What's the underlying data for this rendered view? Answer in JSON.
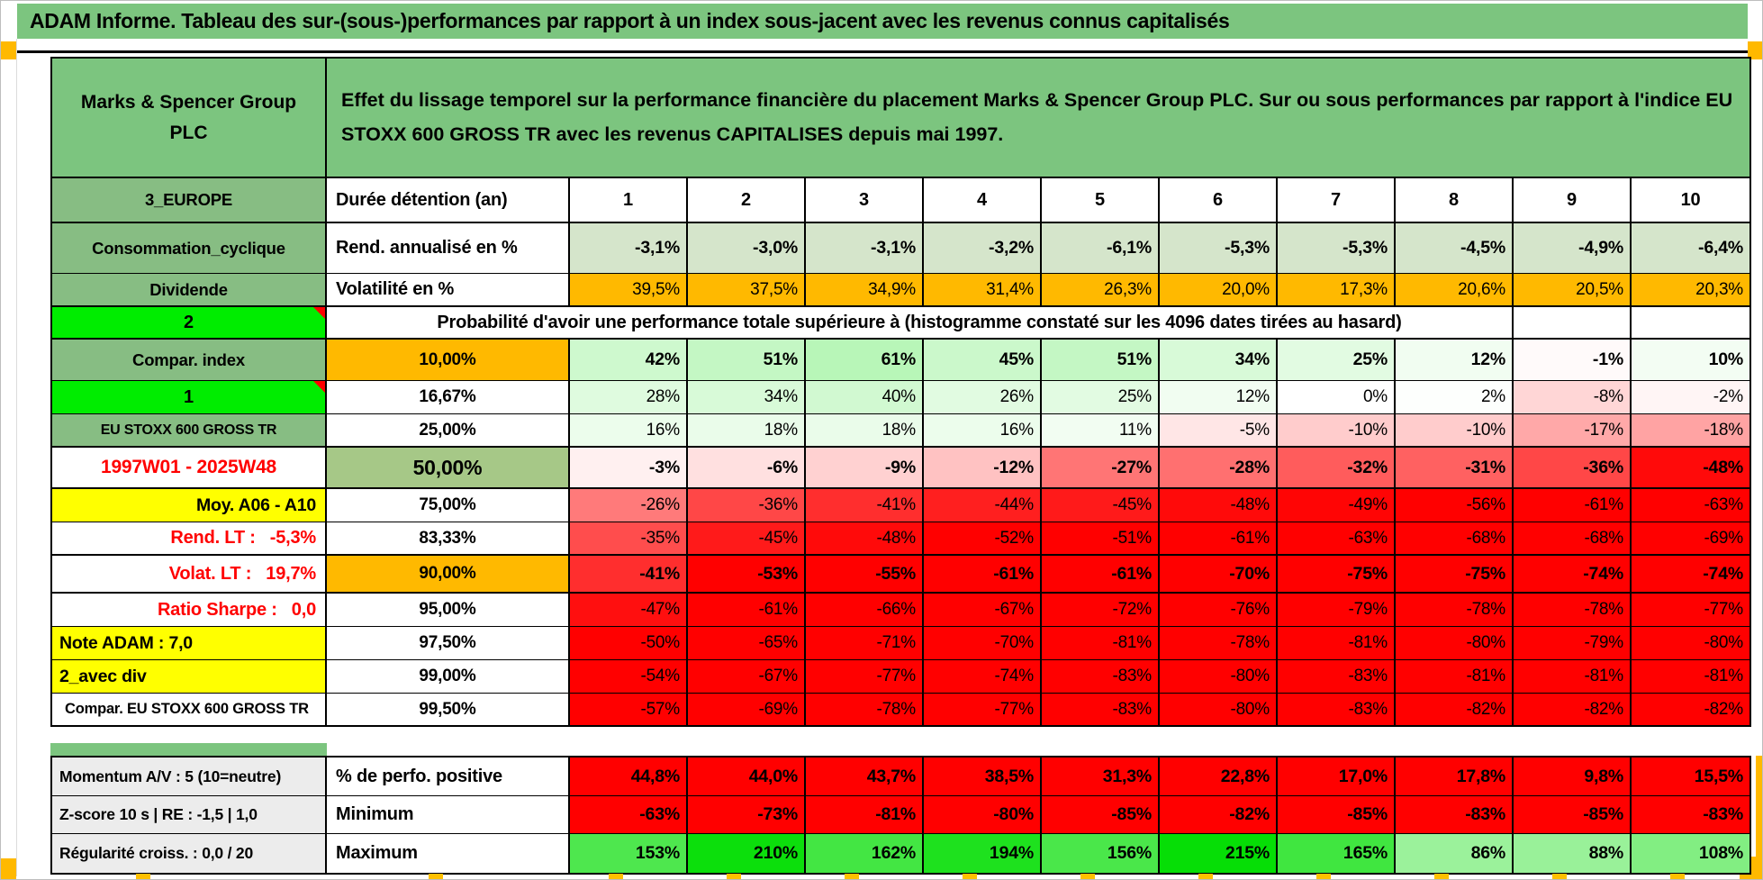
{
  "page": {
    "title": "ADAM Informe. Tableau des sur-(sous-)performances par rapport à un index sous-jacent avec les revenus connus capitalisés"
  },
  "header": {
    "company": "Marks & Spencer Group PLC",
    "description": "Effet du lissage temporel sur la performance financière du placement Marks & Spencer Group PLC. Sur ou sous performances par rapport à l'indice EU STOXX 600 GROSS TR avec les revenus CAPITALISES depuis mai 1997."
  },
  "colors": {
    "header_green": "#7CC57F",
    "label_green": "#87BD83",
    "bright_green": "#00ED00",
    "orange": "#FFB900",
    "yellow": "#FFFF00",
    "muted_green": "#A6C887",
    "pale_green": "#D5E5CB",
    "red_text": "#FF0000",
    "gray_label": "#ECECEC",
    "heat_red": "#FF0000",
    "heat_green": "#00DD00"
  },
  "columns": [
    "1",
    "2",
    "3",
    "4",
    "5",
    "6",
    "7",
    "8",
    "9",
    "10"
  ],
  "main_rows": [
    {
      "a": "3_EUROPE",
      "a_style": "a-green",
      "b": "Durée détention (an)",
      "b_style": "b-left",
      "v_style": "cols",
      "values": [
        "1",
        "2",
        "3",
        "4",
        "5",
        "6",
        "7",
        "8",
        "9",
        "10"
      ]
    },
    {
      "a": "Consommation_cyclique",
      "a_style": "a-green",
      "b": "Rend. annualisé en %",
      "b_style": "b-left",
      "v_style": "pale",
      "values": [
        "-3,1%",
        "-3,0%",
        "-3,1%",
        "-3,2%",
        "-6,1%",
        "-5,3%",
        "-5,3%",
        "-4,5%",
        "-4,9%",
        "-6,4%"
      ]
    },
    {
      "a": "Dividende",
      "a_style": "a-green",
      "b": "Volatilité en %",
      "b_style": "b-left",
      "v_style": "vol",
      "values": [
        "39,5%",
        "37,5%",
        "34,9%",
        "31,4%",
        "26,3%",
        "20,0%",
        "17,3%",
        "20,6%",
        "20,5%",
        "20,3%"
      ]
    },
    {
      "type": "banner",
      "a": "2",
      "a_style": "a-lime",
      "tri": true,
      "banner": "Probabilité d'avoir une performance totale supérieure à (histogramme constaté sur les 4096 dates tirées au hasard)"
    },
    {
      "a": "Compar. index",
      "a_style": "a-green",
      "b": "10,00%",
      "b_style": "b-orange",
      "v_style": "heatb",
      "values": [
        "42%",
        "51%",
        "61%",
        "45%",
        "51%",
        "34%",
        "25%",
        "12%",
        "-1%",
        "10%"
      ]
    },
    {
      "a": "1",
      "a_style": "a-lime",
      "tri": true,
      "b": "16,67%",
      "b_style": "",
      "v_style": "heat",
      "values": [
        "28%",
        "34%",
        "40%",
        "26%",
        "25%",
        "12%",
        "0%",
        "2%",
        "-8%",
        "-2%"
      ]
    },
    {
      "a": "EU STOXX 600 GROSS TR",
      "a_style": "a-green a-sm",
      "b": "25,00%",
      "b_style": "",
      "v_style": "heat",
      "values": [
        "16%",
        "18%",
        "18%",
        "16%",
        "11%",
        "-5%",
        "-10%",
        "-10%",
        "-17%",
        "-18%"
      ]
    },
    {
      "a": "1997W01 - 2025W48",
      "a_style": "a-date",
      "b": "50,00%",
      "b_style": "b-green b-big",
      "v_style": "heatb",
      "values": [
        "-3%",
        "-6%",
        "-9%",
        "-12%",
        "-27%",
        "-28%",
        "-32%",
        "-31%",
        "-36%",
        "-48%"
      ]
    },
    {
      "a": "Moy. A06 - A10",
      "a_style": "a-yellow a-right",
      "b": "75,00%",
      "b_style": "",
      "v_style": "heat",
      "values": [
        "-26%",
        "-36%",
        "-41%",
        "-44%",
        "-45%",
        "-48%",
        "-49%",
        "-56%",
        "-61%",
        "-63%"
      ]
    },
    {
      "a": "Rend. LT :   -5,3%",
      "a_style": "a-red a-right",
      "b": "83,33%",
      "b_style": "",
      "v_style": "heat",
      "values": [
        "-35%",
        "-45%",
        "-48%",
        "-52%",
        "-51%",
        "-61%",
        "-63%",
        "-68%",
        "-68%",
        "-69%"
      ]
    },
    {
      "a": "Volat. LT :   19,7%",
      "a_style": "a-red a-right",
      "b": "90,00%",
      "b_style": "b-orange",
      "v_style": "heatb",
      "values": [
        "-41%",
        "-53%",
        "-55%",
        "-61%",
        "-61%",
        "-70%",
        "-75%",
        "-75%",
        "-74%",
        "-74%"
      ]
    },
    {
      "a": "Ratio Sharpe :   0,0",
      "a_style": "a-red a-right",
      "b": "95,00%",
      "b_style": "",
      "v_style": "heat",
      "values": [
        "-47%",
        "-61%",
        "-66%",
        "-67%",
        "-72%",
        "-76%",
        "-79%",
        "-78%",
        "-78%",
        "-77%"
      ]
    },
    {
      "a": "Note ADAM : 7,0",
      "a_style": "a-yellow a-left",
      "b": "97,50%",
      "b_style": "",
      "v_style": "heat",
      "values": [
        "-50%",
        "-65%",
        "-71%",
        "-70%",
        "-81%",
        "-78%",
        "-81%",
        "-80%",
        "-79%",
        "-80%"
      ]
    },
    {
      "a": "2_avec div",
      "a_style": "a-yellow a-left",
      "b": "99,00%",
      "b_style": "",
      "v_style": "heat",
      "values": [
        "-54%",
        "-67%",
        "-77%",
        "-74%",
        "-83%",
        "-80%",
        "-83%",
        "-81%",
        "-81%",
        "-81%"
      ]
    },
    {
      "a": "Compar. EU STOXX 600 GROSS TR",
      "a_style": "a-wsm",
      "b": "99,50%",
      "b_style": "",
      "v_style": "heat",
      "values": [
        "-57%",
        "-69%",
        "-78%",
        "-77%",
        "-83%",
        "-80%",
        "-83%",
        "-82%",
        "-82%",
        "-82%"
      ]
    }
  ],
  "bottom_rows": [
    {
      "a": "Momentum A/V : 5 (10=neutre)",
      "b": "% de perfo. positive",
      "v_style": "heatb",
      "force_red": true,
      "values": [
        "44,8%",
        "44,0%",
        "43,7%",
        "38,5%",
        "31,3%",
        "22,8%",
        "17,0%",
        "17,8%",
        "9,8%",
        "15,5%"
      ]
    },
    {
      "a": "Z-score 10 s | RE : -1,5 | 1,0",
      "b": "Minimum",
      "v_style": "heatb",
      "values": [
        "-63%",
        "-73%",
        "-81%",
        "-80%",
        "-85%",
        "-82%",
        "-85%",
        "-83%",
        "-85%",
        "-83%"
      ]
    },
    {
      "a": "Régularité croiss. : 0,0 / 20",
      "b": "Maximum",
      "v_style": "heatb",
      "values": [
        "153%",
        "210%",
        "162%",
        "194%",
        "156%",
        "215%",
        "165%",
        "86%",
        "88%",
        "108%"
      ]
    }
  ]
}
